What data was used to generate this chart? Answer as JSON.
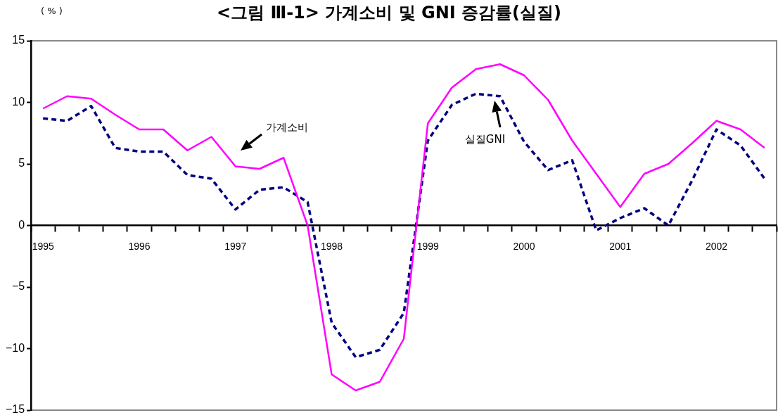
{
  "chart_data": {
    "type": "line",
    "title": "<그림 Ⅲ-1> 가계소비 및 GNI 증감률(실질)",
    "ylabel": "( % )",
    "categories": [
      "1995",
      null,
      null,
      null,
      "1996",
      null,
      null,
      null,
      "1997",
      null,
      null,
      null,
      "1998",
      null,
      null,
      null,
      "1999",
      null,
      null,
      null,
      "2000",
      null,
      null,
      null,
      "2001",
      null,
      null,
      null,
      "2002",
      null,
      null
    ],
    "series": [
      {
        "name": "가계소비",
        "color": "#ff00ff",
        "line_style": "solid",
        "values": [
          9.5,
          10.5,
          10.3,
          9.0,
          7.8,
          7.8,
          6.1,
          7.2,
          4.8,
          4.6,
          5.5,
          0.0,
          -12.1,
          -13.4,
          -12.7,
          -9.2,
          8.3,
          11.2,
          12.7,
          13.1,
          12.2,
          10.2,
          6.9,
          4.2,
          1.5,
          4.2,
          5.0,
          6.7,
          8.5,
          7.8,
          6.3
        ]
      },
      {
        "name": "실질GNI",
        "color": "#000080",
        "line_style": "dashed",
        "values": [
          8.7,
          8.5,
          9.7,
          6.3,
          6.0,
          6.0,
          4.1,
          3.8,
          1.3,
          2.9,
          3.1,
          1.9,
          -7.9,
          -10.7,
          -10.1,
          -7.1,
          6.9,
          9.8,
          10.7,
          10.5,
          6.8,
          4.5,
          5.3,
          -0.4,
          0.6,
          1.4,
          0.0,
          3.7,
          7.8,
          6.5,
          3.8
        ]
      }
    ],
    "ylim": [
      -15,
      15
    ],
    "yticks": [
      -15,
      -10,
      -5,
      0,
      5,
      10,
      15
    ],
    "grid": false,
    "legend": false,
    "marker": "none"
  }
}
